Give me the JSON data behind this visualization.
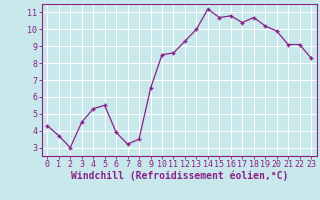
{
  "x": [
    0,
    1,
    2,
    3,
    4,
    5,
    6,
    7,
    8,
    9,
    10,
    11,
    12,
    13,
    14,
    15,
    16,
    17,
    18,
    19,
    20,
    21,
    22,
    23
  ],
  "y": [
    4.3,
    3.7,
    3.0,
    4.5,
    5.3,
    5.5,
    3.9,
    3.2,
    3.5,
    6.5,
    8.5,
    8.6,
    9.3,
    10.0,
    11.2,
    10.7,
    10.8,
    10.4,
    10.7,
    10.2,
    9.9,
    9.1,
    9.1,
    8.3
  ],
  "line_color": "#882288",
  "marker": "+",
  "bg_color": "#c8e8ec",
  "grid_color": "#ffffff",
  "xlabel": "Windchill (Refroidissement éolien,°C)",
  "xlabel_color": "#882288",
  "tick_color": "#882288",
  "xlim": [
    -0.5,
    23.5
  ],
  "ylim": [
    2.5,
    11.5
  ],
  "yticks": [
    3,
    4,
    5,
    6,
    7,
    8,
    9,
    10,
    11
  ],
  "xticks": [
    0,
    1,
    2,
    3,
    4,
    5,
    6,
    7,
    8,
    9,
    10,
    11,
    12,
    13,
    14,
    15,
    16,
    17,
    18,
    19,
    20,
    21,
    22,
    23
  ],
  "tick_fontsize": 6.0,
  "xlabel_fontsize": 7.0,
  "spine_color": "#882288"
}
